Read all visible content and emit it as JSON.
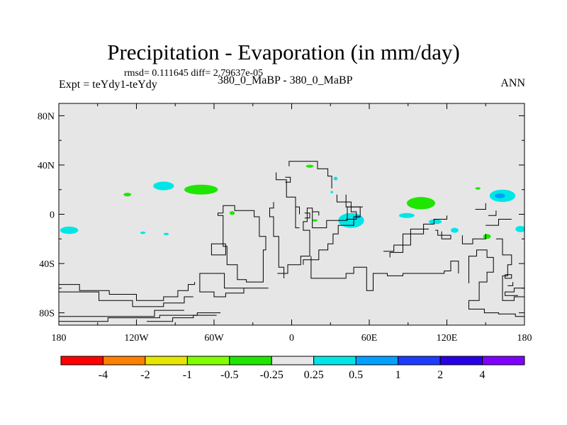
{
  "chart_data": {
    "type": "heatmap",
    "title": "Precipitation - Evaporation (in mm/day)",
    "stats_text": "rmsd= 0.111645 diff= 2.79637e-05",
    "left_label": "Expt = teYdy1-teYdy",
    "center_label": "380_0_MaBP - 380_0_MaBP",
    "right_label": "ANN",
    "xlim": [
      -180,
      180
    ],
    "ylim": [
      -90,
      90
    ],
    "x_ticks": [
      {
        "value": -180,
        "label": "180"
      },
      {
        "value": -120,
        "label": "120W"
      },
      {
        "value": -60,
        "label": "60W"
      },
      {
        "value": 0,
        "label": "0"
      },
      {
        "value": 60,
        "label": "60E"
      },
      {
        "value": 120,
        "label": "120E"
      },
      {
        "value": 180,
        "label": "180"
      }
    ],
    "y_ticks": [
      {
        "value": 80,
        "label": "80N"
      },
      {
        "value": 40,
        "label": "40N"
      },
      {
        "value": 0,
        "label": "0"
      },
      {
        "value": -40,
        "label": "40S"
      },
      {
        "value": -80,
        "label": "80S"
      }
    ],
    "background_color": "#e6e6e6",
    "colorbar": {
      "colors": [
        "#ff0000",
        "#ff8000",
        "#e6e600",
        "#80ff00",
        "#1ee600",
        "#e6e6e6",
        "#00e6e6",
        "#00a0ff",
        "#1e3cff",
        "#2800e6",
        "#8000ff"
      ],
      "labels": [
        "-4",
        "-2",
        "-1",
        "-0.5",
        "-0.25",
        "0.25",
        "0.5",
        "1",
        "2",
        "4"
      ]
    },
    "anomalies": [
      {
        "lon": -172,
        "lat": -13,
        "rlon": 7,
        "rlat": 3,
        "value": 0.35
      },
      {
        "lon": -127,
        "lat": 16,
        "rlon": 3,
        "rlat": 1.5,
        "value": -0.35
      },
      {
        "lon": -99,
        "lat": 23,
        "rlon": 8,
        "rlat": 3.5,
        "value": 0.35
      },
      {
        "lon": -70,
        "lat": 20,
        "rlon": 13,
        "rlat": 4,
        "value": -0.35
      },
      {
        "lon": -115,
        "lat": -15,
        "rlon": 2,
        "rlat": 1,
        "value": 0.35
      },
      {
        "lon": -97,
        "lat": -16,
        "rlon": 2,
        "rlat": 1,
        "value": 0.35
      },
      {
        "lon": -46,
        "lat": 1,
        "rlon": 2,
        "rlat": 1.5,
        "value": -0.35
      },
      {
        "lon": 14,
        "lat": 39,
        "rlon": 3,
        "rlat": 1.2,
        "value": -0.35
      },
      {
        "lon": 34,
        "lat": 29,
        "rlon": 1.5,
        "rlat": 1.5,
        "value": 0.35
      },
      {
        "lon": 31,
        "lat": 18,
        "rlon": 1,
        "rlat": 1,
        "value": 0.35
      },
      {
        "lon": 46,
        "lat": -5,
        "rlon": 10,
        "rlat": 6,
        "value": 0.35
      },
      {
        "lon": 51,
        "lat": -2,
        "rlon": 2,
        "rlat": 1.3,
        "value": 0.7
      },
      {
        "lon": 18,
        "lat": -5,
        "rlon": 2,
        "rlat": 1,
        "value": -0.35
      },
      {
        "lon": 100,
        "lat": 9,
        "rlon": 11,
        "rlat": 5,
        "value": -0.35
      },
      {
        "lon": 89,
        "lat": -1,
        "rlon": 6,
        "rlat": 2,
        "value": 0.35
      },
      {
        "lon": 111,
        "lat": -6,
        "rlon": 5,
        "rlat": 2,
        "value": 0.35
      },
      {
        "lon": 126,
        "lat": -13,
        "rlon": 3,
        "rlat": 2,
        "value": 0.35
      },
      {
        "lon": 144,
        "lat": 21,
        "rlon": 2,
        "rlat": 1,
        "value": -0.35
      },
      {
        "lon": 163,
        "lat": 15,
        "rlon": 10,
        "rlat": 5,
        "value": 0.35
      },
      {
        "lon": 161,
        "lat": 15,
        "rlon": 4,
        "rlat": 2,
        "value": 0.7
      },
      {
        "lon": 151,
        "lat": -18,
        "rlon": 3,
        "rlat": 2,
        "value": -0.35
      },
      {
        "lon": 177,
        "lat": -12,
        "rlon": 4,
        "rlat": 2.5,
        "value": 0.35
      }
    ],
    "coastlines": [
      [
        [
          -180,
          -57
        ],
        [
          -164,
          -57
        ],
        [
          -164,
          -62
        ],
        [
          -141,
          -62
        ],
        [
          -141,
          -65
        ],
        [
          -120,
          -65
        ],
        [
          -120,
          -70
        ],
        [
          -99,
          -70
        ],
        [
          -99,
          -67
        ],
        [
          -88,
          -67
        ],
        [
          -88,
          -62
        ],
        [
          -80,
          -62
        ],
        [
          -80,
          -57
        ],
        [
          -75,
          -57
        ],
        [
          -75,
          -55
        ]
      ],
      [
        [
          -180,
          -63
        ],
        [
          -149,
          -63
        ],
        [
          -149,
          -70
        ],
        [
          -123,
          -70
        ],
        [
          -123,
          -75
        ],
        [
          -99,
          -75
        ],
        [
          -99,
          -72
        ],
        [
          -83,
          -72
        ],
        [
          -83,
          -67
        ],
        [
          -76,
          -67
        ]
      ],
      [
        [
          -180,
          -83
        ],
        [
          -106,
          -83
        ],
        [
          -106,
          -78
        ],
        [
          -83,
          -78
        ]
      ],
      [
        [
          -180,
          -87
        ],
        [
          -142,
          -87
        ],
        [
          -142,
          -84
        ],
        [
          -102,
          -84
        ],
        [
          -102,
          -82
        ],
        [
          -73,
          -82
        ],
        [
          -73,
          -80
        ],
        [
          -55,
          -80
        ]
      ],
      [
        [
          -112,
          -87
        ],
        [
          -92,
          -87
        ],
        [
          -92,
          -84
        ],
        [
          -76,
          -84
        ],
        [
          -76,
          -82
        ],
        [
          -58,
          -82
        ]
      ],
      [
        [
          -53,
          1
        ],
        [
          -53,
          7
        ],
        [
          -44,
          7
        ],
        [
          -44,
          3
        ],
        [
          -29,
          3
        ],
        [
          -29,
          -2
        ],
        [
          -25,
          -2
        ],
        [
          -25,
          -18
        ],
        [
          -20,
          -18
        ],
        [
          -20,
          -29
        ],
        [
          -22,
          -29
        ],
        [
          -22,
          -55
        ],
        [
          -35,
          -55
        ],
        [
          -35,
          -53
        ],
        [
          -42,
          -53
        ],
        [
          -42,
          -41
        ],
        [
          -50,
          -41
        ],
        [
          -50,
          -26
        ],
        [
          -53,
          -26
        ],
        [
          -53,
          -1
        ],
        [
          -57,
          -1
        ],
        [
          -57,
          1
        ],
        [
          -53,
          1
        ]
      ],
      [
        [
          -51,
          -24
        ],
        [
          -51,
          -33
        ],
        [
          -62,
          -33
        ],
        [
          -62,
          -24
        ],
        [
          -51,
          -24
        ]
      ],
      [
        [
          -18,
          -60
        ],
        [
          -52,
          -60
        ],
        [
          -52,
          -48
        ],
        [
          -71,
          -48
        ],
        [
          -71,
          -63
        ],
        [
          -60,
          -63
        ],
        [
          -60,
          -67
        ],
        [
          -51,
          -67
        ],
        [
          -51,
          -64
        ],
        [
          -37,
          -64
        ],
        [
          -37,
          -60
        ],
        [
          -30,
          -60
        ]
      ],
      [
        [
          -6,
          -52
        ],
        [
          -6,
          -43
        ],
        [
          -10,
          -43
        ],
        [
          -10,
          -18
        ],
        [
          -14,
          -18
        ],
        [
          -14,
          -2
        ],
        [
          -17,
          -2
        ],
        [
          -17,
          5
        ],
        [
          -14,
          5
        ],
        [
          -14,
          10
        ]
      ],
      [
        [
          -11,
          -48
        ],
        [
          -3,
          -48
        ],
        [
          -3,
          -41
        ],
        [
          7,
          -41
        ],
        [
          7,
          -34
        ],
        [
          14,
          -34
        ],
        [
          14,
          -13
        ],
        [
          9,
          -13
        ],
        [
          9,
          -6
        ],
        [
          12,
          -6
        ],
        [
          12,
          5
        ],
        [
          16,
          5
        ],
        [
          16,
          -11
        ],
        [
          27,
          -11
        ],
        [
          27,
          -5
        ],
        [
          43,
          -5
        ],
        [
          43,
          6
        ],
        [
          53,
          6
        ],
        [
          53,
          -2
        ],
        [
          48,
          -2
        ],
        [
          48,
          -9
        ],
        [
          36,
          -9
        ],
        [
          36,
          -16
        ],
        [
          32,
          -16
        ],
        [
          32,
          -24
        ],
        [
          28,
          -24
        ],
        [
          28,
          -29
        ],
        [
          21,
          -29
        ],
        [
          21,
          -37
        ],
        [
          9,
          -37
        ],
        [
          9,
          -41
        ]
      ],
      [
        [
          15,
          -34
        ],
        [
          15,
          -52
        ],
        [
          42,
          -52
        ],
        [
          42,
          -48
        ],
        [
          48,
          -48
        ],
        [
          48,
          -43
        ],
        [
          58,
          -43
        ],
        [
          58,
          -62
        ],
        [
          63,
          -62
        ],
        [
          63,
          -48
        ],
        [
          74,
          -48
        ],
        [
          74,
          -50
        ],
        [
          86,
          -50
        ],
        [
          86,
          -48
        ],
        [
          118,
          -48
        ],
        [
          118,
          -46
        ],
        [
          123,
          -46
        ],
        [
          123,
          -38
        ],
        [
          129,
          -38
        ],
        [
          129,
          -48
        ]
      ],
      [
        [
          -2,
          39
        ],
        [
          -2,
          43
        ],
        [
          20,
          43
        ],
        [
          20,
          37
        ],
        [
          28,
          37
        ],
        [
          28,
          31
        ],
        [
          31,
          31
        ],
        [
          31,
          21
        ]
      ],
      [
        [
          -12,
          34
        ],
        [
          -12,
          28
        ],
        [
          -4,
          28
        ],
        [
          -4,
          14
        ],
        [
          3,
          14
        ],
        [
          3,
          -11
        ],
        [
          6,
          -11
        ]
      ],
      [
        [
          -5,
          30
        ],
        [
          -1,
          30
        ],
        [
          -1,
          26
        ],
        [
          -5,
          26
        ]
      ],
      [
        [
          35,
          16
        ],
        [
          35,
          10
        ],
        [
          46,
          10
        ],
        [
          46,
          2
        ],
        [
          50,
          2
        ],
        [
          50,
          -4
        ],
        [
          42,
          -4
        ]
      ],
      [
        [
          42,
          16
        ],
        [
          42,
          6
        ],
        [
          55,
          6
        ]
      ],
      [
        [
          76,
          -35
        ],
        [
          76,
          -31
        ],
        [
          86,
          -31
        ],
        [
          86,
          -16
        ],
        [
          102,
          -16
        ],
        [
          102,
          -8
        ],
        [
          110,
          -8
        ],
        [
          110,
          -4
        ],
        [
          120,
          -4
        ],
        [
          120,
          -1
        ]
      ],
      [
        [
          71,
          -30
        ],
        [
          79,
          -30
        ],
        [
          79,
          -25
        ],
        [
          92,
          -25
        ],
        [
          92,
          -12
        ],
        [
          106,
          -12
        ]
      ],
      [
        [
          111,
          -13
        ],
        [
          113,
          -13
        ],
        [
          113,
          -17
        ],
        [
          123,
          -17
        ],
        [
          123,
          -20
        ],
        [
          116,
          -20
        ],
        [
          116,
          -14
        ]
      ],
      [
        [
          132,
          -17
        ],
        [
          132,
          -24
        ],
        [
          140,
          -24
        ],
        [
          140,
          -20
        ],
        [
          150,
          -20
        ],
        [
          150,
          -16
        ]
      ],
      [
        [
          150,
          -9
        ],
        [
          160,
          -9
        ],
        [
          160,
          -4
        ],
        [
          170,
          -4
        ]
      ],
      [
        [
          142,
          4
        ],
        [
          150,
          4
        ],
        [
          150,
          9
        ]
      ],
      [
        [
          152,
          -1
        ],
        [
          158,
          -1
        ],
        [
          158,
          3
        ]
      ],
      [
        [
          137,
          -56
        ],
        [
          137,
          -34
        ],
        [
          143,
          -34
        ],
        [
          143,
          -29
        ],
        [
          151,
          -29
        ],
        [
          151,
          -35
        ],
        [
          156,
          -35
        ],
        [
          156,
          -47
        ],
        [
          151,
          -47
        ],
        [
          151,
          -55
        ],
        [
          145,
          -55
        ],
        [
          145,
          -70
        ],
        [
          137,
          -70
        ],
        [
          137,
          -77
        ],
        [
          149,
          -77
        ],
        [
          149,
          -80
        ],
        [
          160,
          -80
        ],
        [
          160,
          -81
        ],
        [
          173,
          -81
        ],
        [
          173,
          -83
        ],
        [
          180,
          -83
        ]
      ],
      [
        [
          158,
          -20
        ],
        [
          163,
          -20
        ],
        [
          163,
          -33
        ],
        [
          170,
          -33
        ],
        [
          170,
          -41
        ],
        [
          167,
          -41
        ],
        [
          167,
          -50
        ],
        [
          163,
          -50
        ],
        [
          163,
          -70
        ],
        [
          172,
          -70
        ],
        [
          172,
          -67
        ],
        [
          180,
          -67
        ]
      ],
      [
        [
          181,
          -60
        ],
        [
          172,
          -60
        ],
        [
          172,
          -63
        ],
        [
          165,
          -63
        ],
        [
          165,
          -66
        ],
        [
          175,
          -66
        ]
      ],
      [
        [
          165,
          -49
        ],
        [
          170,
          -49
        ],
        [
          170,
          -52
        ],
        [
          165,
          -52
        ],
        [
          165,
          -49
        ]
      ],
      [
        [
          167,
          -58
        ],
        [
          171,
          -58
        ],
        [
          171,
          -55
        ]
      ],
      [
        [
          3,
          6
        ],
        [
          6,
          6
        ],
        [
          6,
          0
        ]
      ],
      [
        [
          10,
          1
        ],
        [
          14,
          1
        ],
        [
          14,
          -3
        ],
        [
          10,
          -3
        ]
      ],
      [
        [
          16,
          2
        ],
        [
          21,
          2
        ],
        [
          21,
          -1
        ]
      ]
    ]
  }
}
